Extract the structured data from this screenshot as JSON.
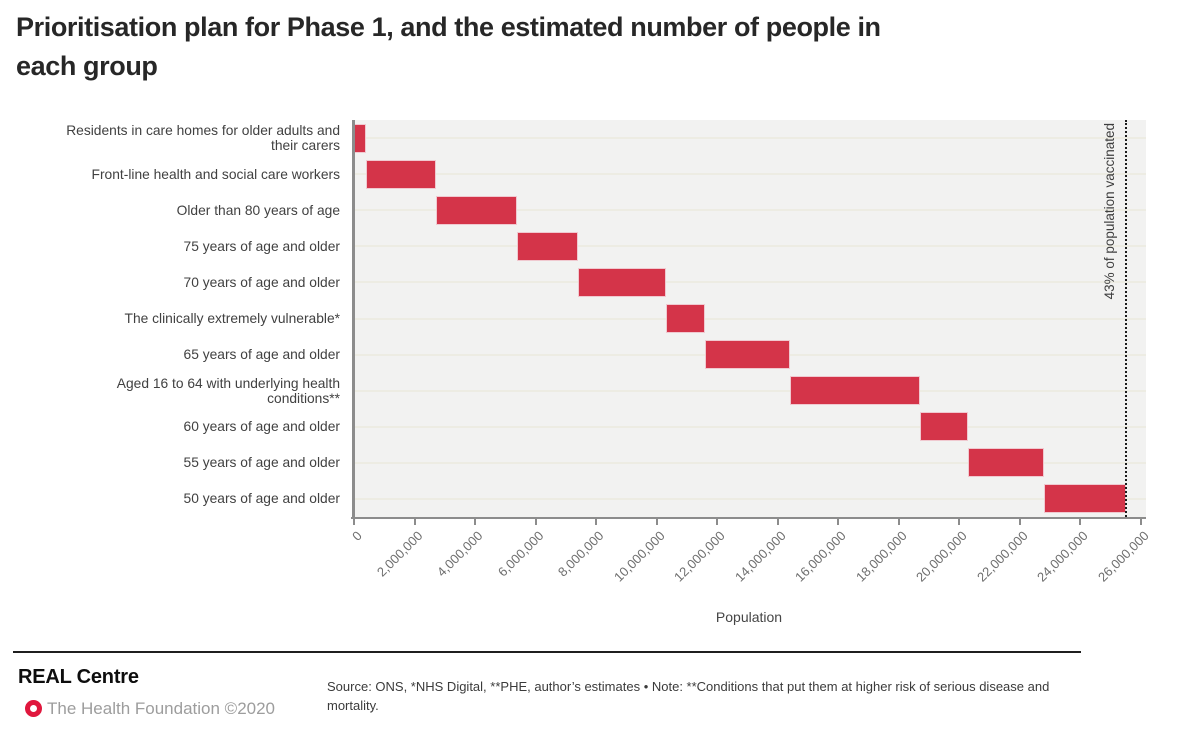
{
  "title": {
    "lines": [
      "Prioritisation plan for Phase 1, and the estimated number of people in",
      "each group"
    ]
  },
  "chart_data": {
    "type": "bar",
    "variant": "waterfall",
    "title": "Prioritisation plan for Phase 1, and the estimated number of people in each group",
    "xlabel": "Population",
    "xlim": [
      0,
      26000000
    ],
    "grid": "horizontal-row-guides",
    "legend": "none",
    "bar_color": "#d43449",
    "bar_border_color": "#f0c9d0",
    "plot_background": "#f2f2f1",
    "categories": [
      [
        "Residents in care homes for older adults and",
        "their carers"
      ],
      [
        "Front-line health and social care workers"
      ],
      [
        "Older than 80 years of age"
      ],
      [
        "75 years of age and older"
      ],
      [
        "70 years of age and older"
      ],
      [
        "The clinically extremely vulnerable*"
      ],
      [
        "65 years of age and older"
      ],
      [
        "Aged 16 to 64 with underlying health",
        "conditions**"
      ],
      [
        "60 years of age and older"
      ],
      [
        "55 years of age and older"
      ],
      [
        "50 years of age and older"
      ]
    ],
    "values": [
      400000,
      2300000,
      2700000,
      2000000,
      2900000,
      1300000,
      2800000,
      4300000,
      1600000,
      2500000,
      2700000
    ],
    "cumulative_totals": [
      400000,
      2700000,
      5400000,
      7400000,
      10300000,
      11600000,
      14400000,
      18700000,
      20300000,
      22800000,
      25500000
    ],
    "x_tick_values": [
      0,
      2000000,
      4000000,
      6000000,
      8000000,
      10000000,
      12000000,
      14000000,
      16000000,
      18000000,
      20000000,
      22000000,
      24000000,
      26000000
    ],
    "x_tick_labels": [
      "0",
      "2,000,000",
      "4,000,000",
      "6,000,000",
      "8,000,000",
      "10,000,000",
      "12,000,000",
      "14,000,000",
      "16,000,000",
      "18,000,000",
      "20,000,000",
      "22,000,000",
      "24,000,000",
      "26,000,000"
    ],
    "annotation": {
      "text": "43% of population vaccinated",
      "x": 25500000,
      "style": "vertical-dotted-line"
    }
  },
  "footer": {
    "brand": "REAL Centre",
    "attribution": "The Health Foundation ©2020",
    "logo_color": "#e0173d",
    "source_note_lines": [
      "Source: ONS, *NHS Digital, **PHE, author’s estimates • Note: **Conditions that put them at higher risk of serious disease and",
      "mortality."
    ]
  }
}
